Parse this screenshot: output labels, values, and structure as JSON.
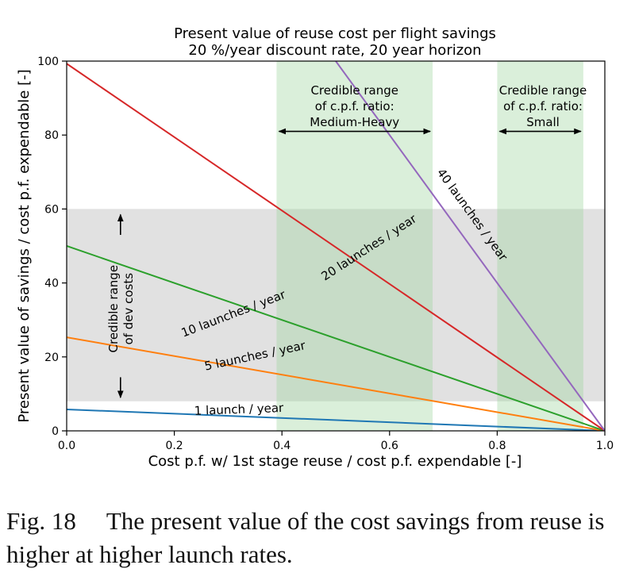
{
  "chart_data": {
    "type": "line",
    "title": "Present value of reuse cost per flight savings",
    "subtitle": "20 %/year discount rate, 20 year horizon",
    "xlabel": "Cost p.f. w/ 1st stage reuse / cost p.f. expendable [-]",
    "ylabel": "Present value of savings / cost p.f. expendable [-]",
    "xlim": [
      0,
      1
    ],
    "ylim": [
      0,
      100
    ],
    "xticks": [
      0.0,
      0.2,
      0.4,
      0.6,
      0.8,
      1.0
    ],
    "xtick_labels": [
      "0.0",
      "0.2",
      "0.4",
      "0.6",
      "0.8",
      "1.0"
    ],
    "yticks": [
      0,
      20,
      40,
      60,
      80,
      100
    ],
    "ytick_labels": [
      "0",
      "20",
      "40",
      "60",
      "80",
      "100"
    ],
    "grid": false,
    "series": [
      {
        "name": "1 launch / year",
        "x": [
          0,
          1
        ],
        "y": [
          5.8,
          0
        ],
        "color": "#1f77b4"
      },
      {
        "name": "5 launches / year",
        "x": [
          0,
          1
        ],
        "y": [
          25.3,
          0
        ],
        "color": "#ff7f0e"
      },
      {
        "name": "10 launches / year",
        "x": [
          0,
          1
        ],
        "y": [
          50.0,
          0
        ],
        "color": "#2ca02c"
      },
      {
        "name": "20 launches / year",
        "x": [
          0,
          1
        ],
        "y": [
          99.3,
          0
        ],
        "color": "#d62728"
      },
      {
        "name": "40 launches / year",
        "x": [
          0.5,
          1
        ],
        "y": [
          100,
          0
        ],
        "color": "#9467bd"
      }
    ],
    "line_labels": [
      {
        "text": "1 launch / year",
        "x": 0.32,
        "y": 5.7,
        "angle": -2
      },
      {
        "text": "5 launches / year",
        "x": 0.35,
        "y": 20.2,
        "angle": -12
      },
      {
        "text": "10 launches / year",
        "x": 0.31,
        "y": 31.6,
        "angle": -21
      },
      {
        "text": "20 launches / year",
        "x": 0.562,
        "y": 49.5,
        "angle": -33
      },
      {
        "text": "40 launches / year",
        "x": 0.753,
        "y": 58.4,
        "angle": 54
      }
    ],
    "dev_cost_band": {
      "y_range": [
        8,
        60
      ],
      "color": "#dcdcdc",
      "label_lines": [
        "Credible range",
        "of dev costs"
      ],
      "label_x": 0.101,
      "label_y": 33,
      "arrow_x": 0.1,
      "arrow_up_y": [
        53,
        58.5
      ],
      "arrow_down_y": [
        14.5,
        9
      ]
    },
    "cpf_ranges": [
      {
        "x_range": [
          0.39,
          0.68
        ],
        "color": "#d3ebd3",
        "label_lines": [
          "Credible range",
          "of c.p.f. ratio:",
          "Medium-Heavy"
        ],
        "label_x": 0.535,
        "arrow_y": 81
      },
      {
        "x_range": [
          0.8,
          0.96
        ],
        "color": "#d3ebd3",
        "label_lines": [
          "Credible range",
          "of c.p.f. ratio:",
          "Small"
        ],
        "label_x": 0.885,
        "arrow_y": 81
      }
    ]
  },
  "caption": {
    "number": "Fig. 18",
    "text": "The present value of the cost savings from reuse is higher at higher launch rates."
  }
}
